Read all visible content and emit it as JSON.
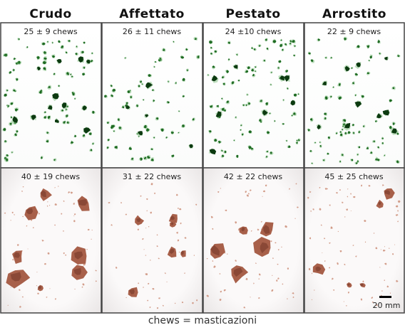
{
  "columns": [
    "Crudo",
    "Affettato",
    "Pestato",
    "Arrostito"
  ],
  "rows": [
    [
      "25 ± 9 chews",
      "26 ± 11 chews",
      "24 ±10 chews",
      "22 ± 9 chews"
    ],
    [
      "40 ± 19 chews",
      "31 ± 22 chews",
      "42 ± 22 chews",
      "45 ± 25 chews"
    ]
  ],
  "scale_bar": "20 mm",
  "caption": "chews = masticazioni"
}
